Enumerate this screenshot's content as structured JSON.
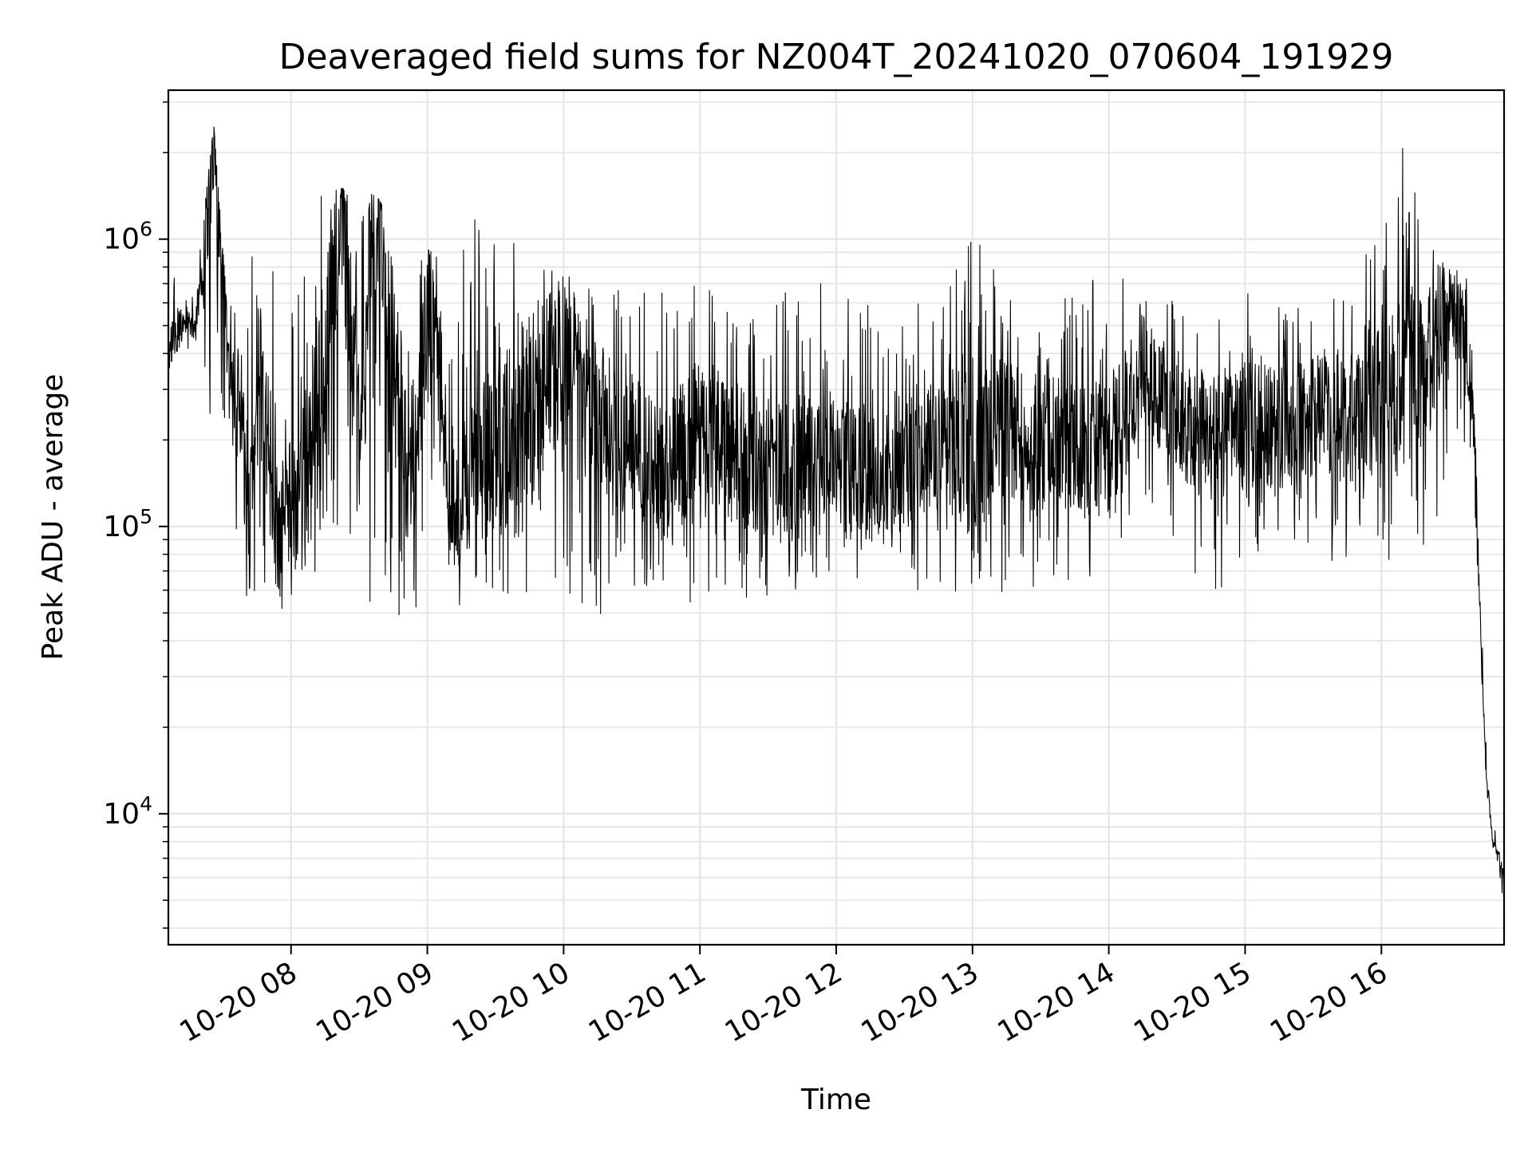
{
  "chart_data": {
    "type": "line",
    "title": "Deaveraged field sums for NZ004T_20241020_070604_191929",
    "xlabel": "Time",
    "ylabel": "Peak ADU - average",
    "yscale": "log",
    "ylim": [
      3500,
      3300000
    ],
    "xlim": [
      "2024-10-20 07:06",
      "2024-10-20 16:54"
    ],
    "x_ticks": [
      "10-20 08",
      "10-20 09",
      "10-20 10",
      "10-20 11",
      "10-20 12",
      "10-20 13",
      "10-20 14",
      "10-20 15",
      "10-20 16"
    ],
    "y_ticks": [
      {
        "base": "10",
        "exp": "4",
        "value": 10000
      },
      {
        "base": "10",
        "exp": "5",
        "value": 100000
      },
      {
        "base": "10",
        "exp": "6",
        "value": 1000000
      }
    ],
    "grid": true,
    "line_color": "#000000",
    "series": [
      {
        "x": [
          "2024-10-20 07:06",
          "2024-10-20 07:10",
          "2024-10-20 07:14",
          "2024-10-20 07:18",
          "2024-10-20 07:22",
          "2024-10-20 07:26",
          "2024-10-20 07:30",
          "2024-10-20 07:34",
          "2024-10-20 07:38",
          "2024-10-20 07:42",
          "2024-10-20 07:46",
          "2024-10-20 07:50",
          "2024-10-20 07:54",
          "2024-10-20 07:58",
          "2024-10-20 08:06",
          "2024-10-20 08:14",
          "2024-10-20 08:22",
          "2024-10-20 08:30",
          "2024-10-20 08:38",
          "2024-10-20 08:46",
          "2024-10-20 08:54",
          "2024-10-20 09:02",
          "2024-10-20 09:10",
          "2024-10-20 09:20",
          "2024-10-20 09:30",
          "2024-10-20 09:40",
          "2024-10-20 09:50",
          "2024-10-20 10:00",
          "2024-10-20 10:15",
          "2024-10-20 10:30",
          "2024-10-20 10:45",
          "2024-10-20 11:00",
          "2024-10-20 11:15",
          "2024-10-20 11:30",
          "2024-10-20 11:45",
          "2024-10-20 12:00",
          "2024-10-20 12:15",
          "2024-10-20 12:30",
          "2024-10-20 12:45",
          "2024-10-20 13:00",
          "2024-10-20 13:15",
          "2024-10-20 13:30",
          "2024-10-20 13:45",
          "2024-10-20 14:00",
          "2024-10-20 14:15",
          "2024-10-20 14:30",
          "2024-10-20 14:45",
          "2024-10-20 15:00",
          "2024-10-20 15:15",
          "2024-10-20 15:30",
          "2024-10-20 15:45",
          "2024-10-20 16:00",
          "2024-10-20 16:10",
          "2024-10-20 16:20",
          "2024-10-20 16:30",
          "2024-10-20 16:36",
          "2024-10-20 16:40",
          "2024-10-20 16:43",
          "2024-10-20 16:46",
          "2024-10-20 16:49",
          "2024-10-20 16:52",
          "2024-10-20 16:54"
        ],
        "values": [
          400000,
          480000,
          520000,
          500000,
          950000,
          2500000,
          700000,
          300000,
          250000,
          100000,
          400000,
          200000,
          90000,
          150000,
          130000,
          300000,
          1400000,
          200000,
          1500000,
          300000,
          180000,
          700000,
          120000,
          160000,
          200000,
          180000,
          300000,
          400000,
          250000,
          200000,
          150000,
          220000,
          180000,
          160000,
          170000,
          180000,
          140000,
          160000,
          200000,
          190000,
          210000,
          200000,
          190000,
          180000,
          350000,
          240000,
          200000,
          230000,
          220000,
          240000,
          260000,
          300000,
          350000,
          380000,
          600000,
          500000,
          300000,
          60000,
          14000,
          8000,
          7000,
          6000
        ],
        "min_envelope": [
          350000,
          400000,
          420000,
          380000,
          250000,
          200000,
          220000,
          60000,
          52000,
          50000,
          60000,
          55000,
          52000,
          50000,
          55000,
          50000,
          52000,
          49000,
          50000,
          48000,
          47000,
          46000,
          50000,
          55000,
          60000,
          50000,
          48000,
          45000,
          46000,
          50000,
          55000,
          52000,
          50000,
          55000,
          60000,
          65000,
          65000,
          60000,
          58000,
          55000,
          60000,
          62000,
          65000,
          70000,
          120000,
          75000,
          60000,
          65000,
          65000,
          70000,
          72000,
          75000,
          75000,
          80000,
          150000,
          200000,
          160000,
          55000,
          12000,
          7500,
          5500,
          5000
        ],
        "max_envelope": [
          700000,
          900000,
          600000,
          650000,
          1300000,
          2500000,
          900000,
          700000,
          500000,
          1100000,
          600000,
          700000,
          900000,
          600000,
          1400000,
          1450000,
          1500000,
          1500000,
          1400000,
          1100000,
          1000000,
          900000,
          800000,
          1200000,
          1300000,
          1100000,
          1000000,
          800000,
          700000,
          650000,
          700000,
          700000,
          650000,
          700000,
          650000,
          800000,
          700000,
          600000,
          650000,
          1200000,
          800000,
          700000,
          650000,
          900000,
          900000,
          600000,
          650000,
          650000,
          600000,
          600000,
          650000,
          1600000,
          2200000,
          1400000,
          1000000,
          800000,
          650000,
          120000,
          18000,
          9000,
          8500,
          7000
        ]
      }
    ]
  }
}
